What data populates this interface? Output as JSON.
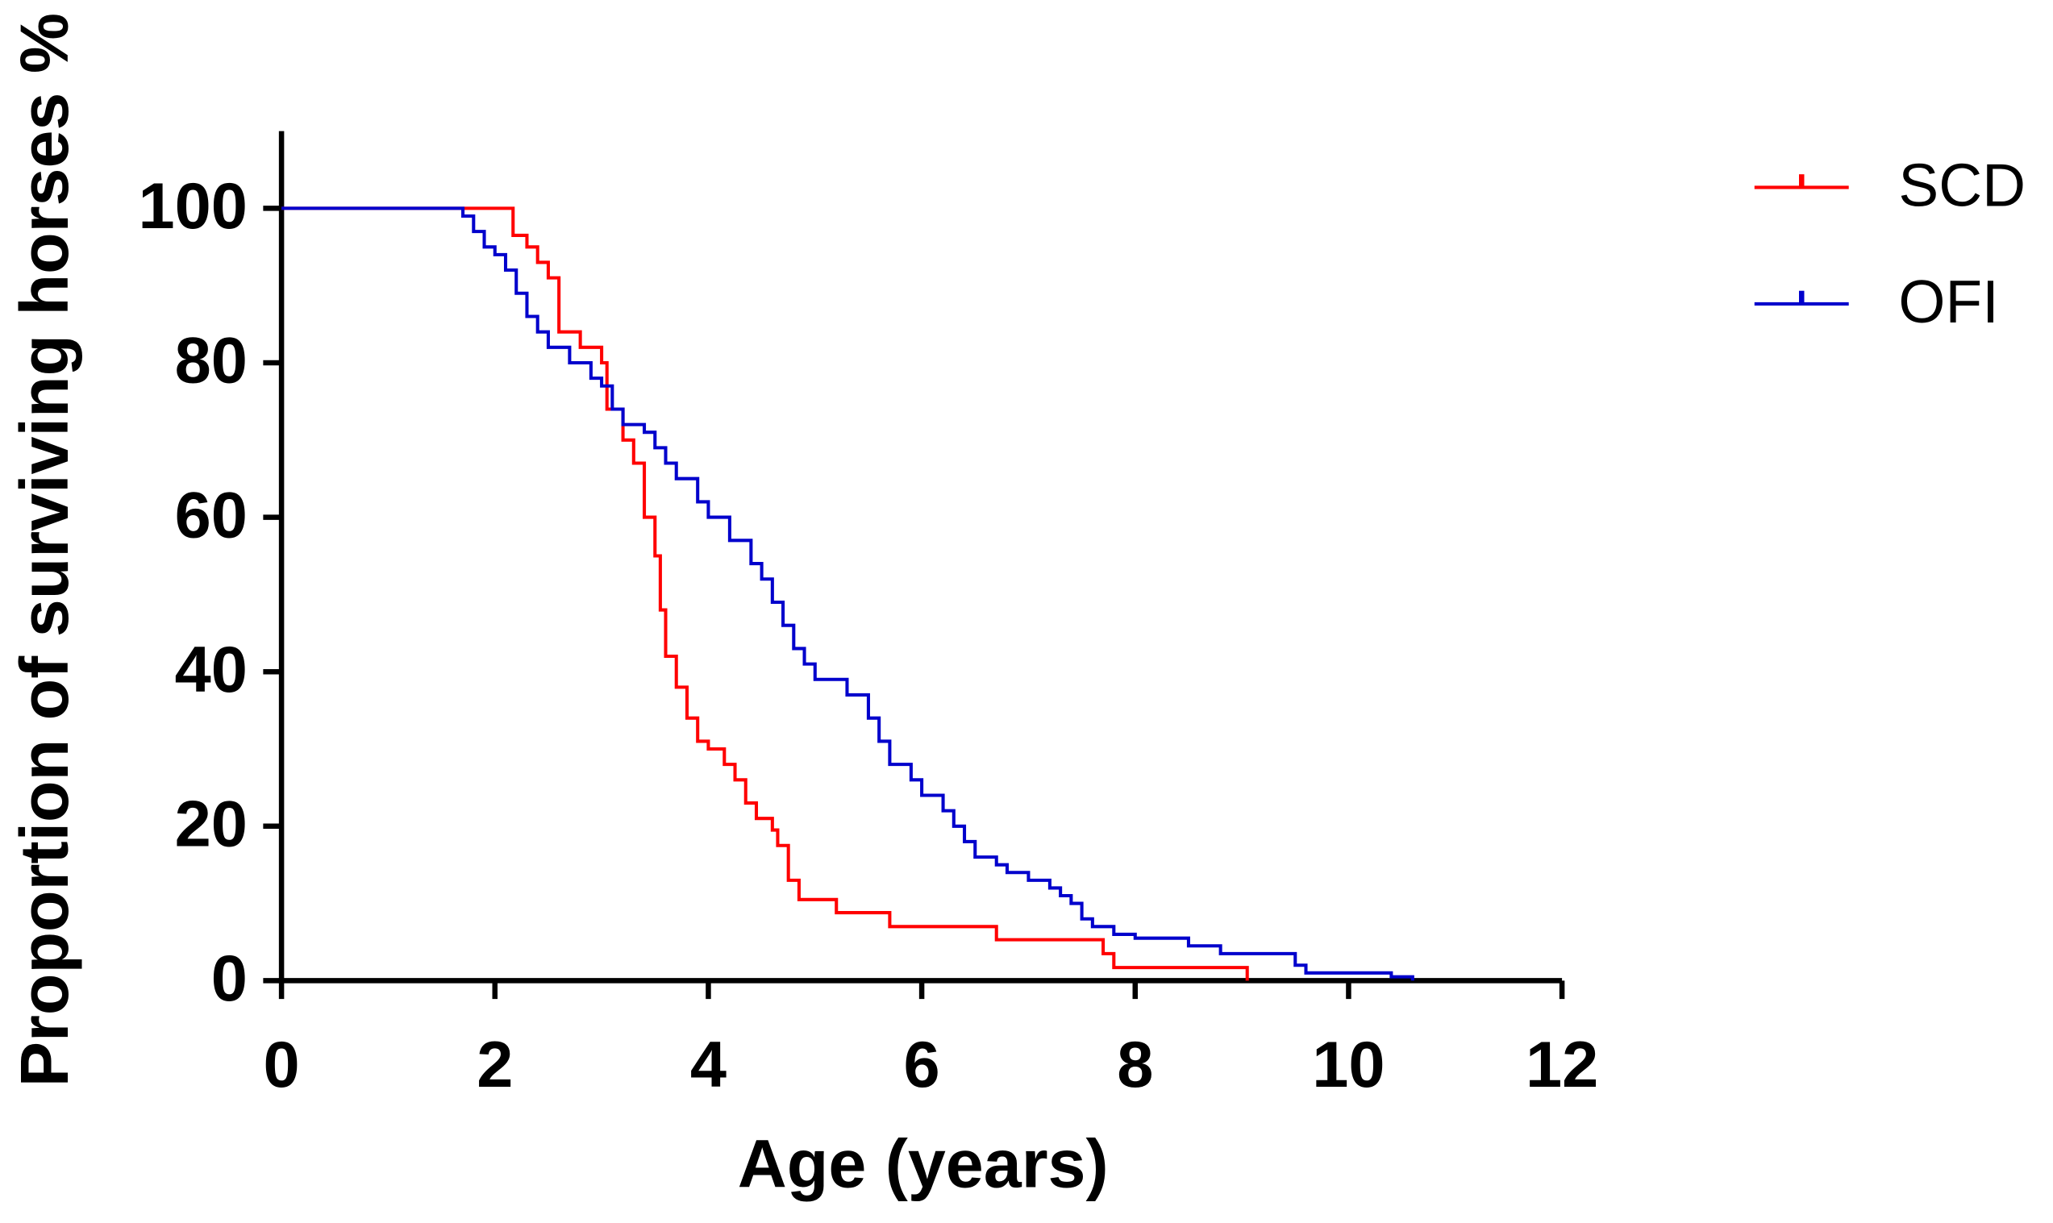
{
  "chart_data": {
    "type": "step",
    "x_label": "Age (years)",
    "y_label": "Proportion of surviving horses %",
    "xlim": [
      0,
      12
    ],
    "xticks": [
      0,
      2,
      4,
      6,
      8,
      10,
      12
    ],
    "ylim": [
      0,
      110
    ],
    "yticks": [
      0,
      20,
      40,
      60,
      80,
      100
    ],
    "legend": "right",
    "series": [
      {
        "name": "SCD",
        "color": "#ff0000",
        "x": [
          0,
          2.17,
          2.3,
          2.4,
          2.5,
          2.6,
          2.8,
          3.0,
          3.05,
          3.2,
          3.3,
          3.4,
          3.5,
          3.55,
          3.6,
          3.7,
          3.8,
          3.9,
          4.0,
          4.15,
          4.25,
          4.35,
          4.45,
          4.6,
          4.65,
          4.75,
          4.85,
          5.2,
          5.7,
          6.7,
          7.7,
          7.8,
          9.05
        ],
        "values": [
          100,
          96.5,
          95,
          93,
          91,
          84,
          82,
          80,
          74,
          70,
          67,
          60,
          55,
          48,
          42,
          38,
          34,
          31,
          30,
          28,
          26,
          23,
          21,
          19.5,
          17.5,
          13,
          10.5,
          8.8,
          7,
          5.3,
          3.5,
          1.7,
          0
        ]
      },
      {
        "name": "OFI",
        "color": "#0000cc",
        "x": [
          0,
          1.7,
          1.8,
          1.9,
          2.0,
          2.1,
          2.2,
          2.3,
          2.4,
          2.5,
          2.7,
          2.9,
          3.0,
          3.1,
          3.2,
          3.4,
          3.5,
          3.6,
          3.7,
          3.9,
          4.0,
          4.2,
          4.4,
          4.5,
          4.6,
          4.7,
          4.8,
          4.9,
          5.0,
          5.3,
          5.5,
          5.6,
          5.7,
          5.9,
          6.0,
          6.2,
          6.3,
          6.4,
          6.5,
          6.7,
          6.8,
          7.0,
          7.2,
          7.3,
          7.4,
          7.5,
          7.6,
          7.8,
          8.0,
          8.5,
          8.8,
          9.5,
          9.6,
          10.4,
          10.6
        ],
        "values": [
          100,
          99,
          97,
          95,
          94,
          92,
          89,
          86,
          84,
          82,
          80,
          78,
          77,
          74,
          72,
          71,
          69,
          67,
          65,
          62,
          60,
          57,
          54,
          52,
          49,
          46,
          43,
          41,
          39,
          37,
          34,
          31,
          28,
          26,
          24,
          22,
          20,
          18,
          16,
          15,
          14,
          13,
          12,
          11,
          10,
          8,
          7,
          6,
          5.5,
          4.5,
          3.5,
          2,
          1,
          0.5,
          0
        ]
      }
    ]
  }
}
